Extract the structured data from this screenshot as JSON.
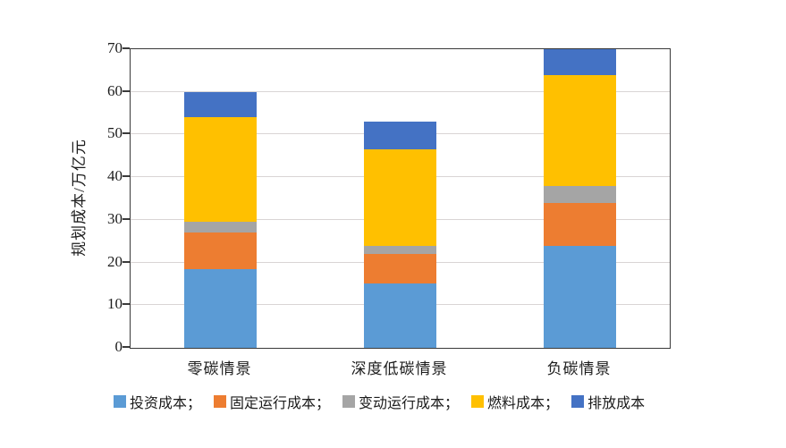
{
  "chart_data": {
    "type": "bar",
    "stacked": true,
    "title": "",
    "xlabel": "",
    "ylabel": "规划成本/万亿元",
    "ylim": [
      0,
      70
    ],
    "yticks": [
      0,
      10,
      20,
      30,
      40,
      50,
      60,
      70
    ],
    "grid": "horizontal",
    "legend_position": "bottom",
    "categories": [
      "零碳情景",
      "深度低碳情景",
      "负碳情景"
    ],
    "category_slugs": [
      "zero-carbon-scenario",
      "deep-low-carbon-scenario",
      "negative-carbon-scenario"
    ],
    "series": [
      {
        "name": "投资成本",
        "legend_label": "投资成本；",
        "slug": "investment-cost",
        "color": "#5B9BD5",
        "values": [
          18.5,
          15.0,
          24.0
        ]
      },
      {
        "name": "固定运行成本",
        "legend_label": "固定运行成本；",
        "slug": "fixed-om-cost",
        "color": "#ED7D31",
        "values": [
          8.5,
          7.0,
          10.0
        ]
      },
      {
        "name": "变动运行成本",
        "legend_label": "变动运行成本；",
        "slug": "variable-om-cost",
        "color": "#A5A5A5",
        "values": [
          2.5,
          2.0,
          4.0
        ]
      },
      {
        "name": "燃料成本",
        "legend_label": "燃料成本；",
        "slug": "fuel-cost",
        "color": "#FFC000",
        "values": [
          24.5,
          22.5,
          26.0
        ]
      },
      {
        "name": "排放成本",
        "legend_label": "排放成本",
        "slug": "emission-cost",
        "color": "#4472C4",
        "values": [
          6.0,
          6.5,
          6.0
        ]
      }
    ],
    "stack_totals": [
      60,
      53,
      70
    ]
  },
  "styles": {
    "axis_color": "#3a3a3a",
    "grid_color": "#d9d5d5",
    "text_color": "#1c1c1c",
    "background": "#ffffff"
  }
}
